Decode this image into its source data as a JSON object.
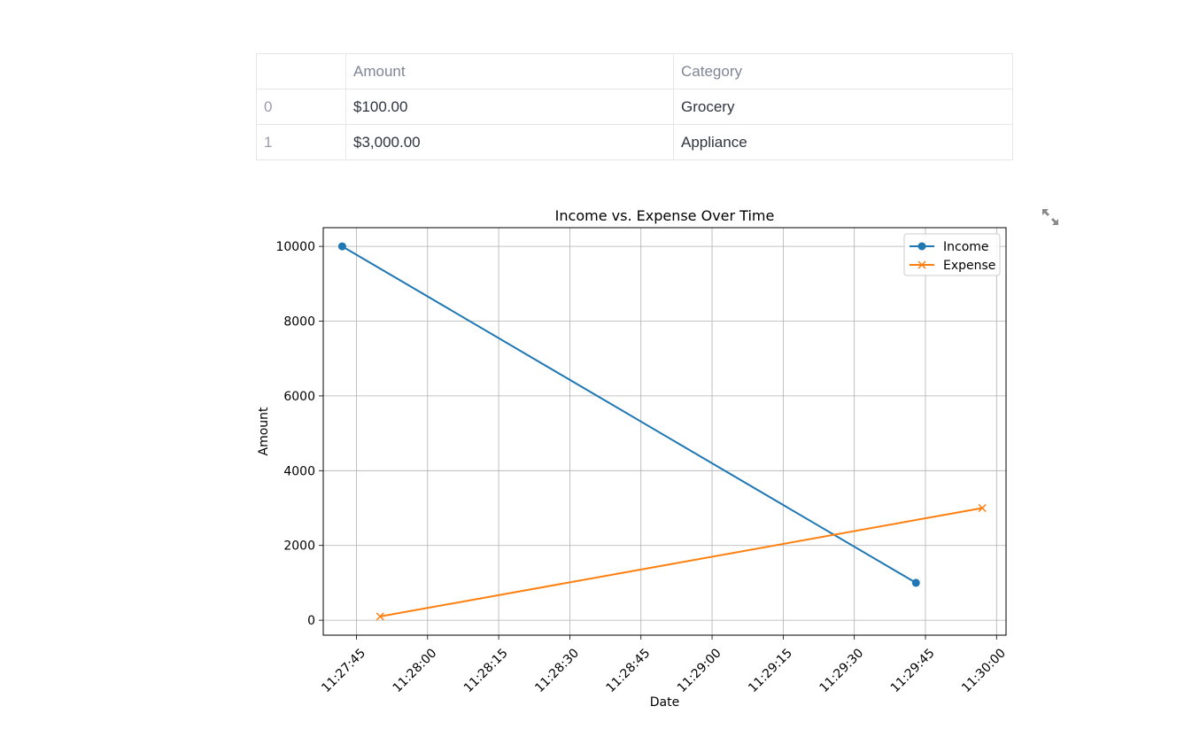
{
  "table": {
    "columns": [
      "",
      "Amount",
      "Category"
    ],
    "rows": [
      {
        "index": "0",
        "amount": "$100.00",
        "category": "Grocery"
      },
      {
        "index": "1",
        "amount": "$3,000.00",
        "category": "Appliance"
      }
    ]
  },
  "chart_data": {
    "type": "line",
    "title": "Income vs. Expense Over Time",
    "xlabel": "Date",
    "ylabel": "Amount",
    "x_tick_labels": [
      "11:27:45",
      "11:28:00",
      "11:28:15",
      "11:28:30",
      "11:28:45",
      "11:29:00",
      "11:29:15",
      "11:29:30",
      "11:29:45",
      "11:30:00"
    ],
    "y_tick_labels": [
      "0",
      "2000",
      "4000",
      "6000",
      "8000",
      "10000"
    ],
    "xlim": [
      "11:27:38",
      "11:30:02"
    ],
    "ylim": [
      -400,
      10500
    ],
    "grid": true,
    "legend": "top-right",
    "series": [
      {
        "name": "Income",
        "color": "#1f77b4",
        "marker": "circle",
        "x": [
          "11:27:42",
          "11:29:43"
        ],
        "y": [
          10000,
          1000
        ]
      },
      {
        "name": "Expense",
        "color": "#ff7f0e",
        "marker": "x",
        "x": [
          "11:27:50",
          "11:29:57"
        ],
        "y": [
          100,
          3000
        ]
      }
    ]
  },
  "icons": {
    "expand": "expand-icon"
  }
}
